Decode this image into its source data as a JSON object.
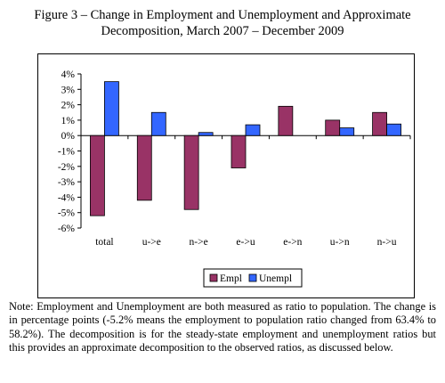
{
  "title_lines": [
    "Figure 3 – Change in Employment and Unemployment and Approximate",
    "Decomposition, March 2007 – December 2009"
  ],
  "note": "Note: Employment and Unemployment are both measured as ratio to population. The change is in percentage points (-5.2% means the employment to population ratio changed from 63.4% to 58.2%). The decomposition is for the steady-state employment and unemployment ratios but this provides an approximate decomposition to the observed ratios, as discussed below.",
  "chart_data": {
    "type": "bar",
    "title": "",
    "xlabel": "",
    "ylabel": "",
    "categories": [
      "total",
      "u->e",
      "n->e",
      "e->u",
      "e->n",
      "u->n",
      "n->u"
    ],
    "series": [
      {
        "name": "Empl",
        "color": "#993366",
        "values": [
          -5.2,
          -4.2,
          -4.8,
          -2.1,
          1.9,
          1.0,
          1.5
        ]
      },
      {
        "name": "Unempl",
        "color": "#3366ff",
        "values": [
          3.5,
          1.5,
          0.2,
          0.7,
          null,
          0.5,
          0.75
        ]
      }
    ],
    "ylim": [
      -6,
      4
    ],
    "yticks": [
      "4%",
      "3%",
      "2%",
      "1%",
      "0%",
      "-1%",
      "-2%",
      "-3%",
      "-4%",
      "-5%",
      "-6%"
    ],
    "grid": false,
    "legend": "bottom-right"
  }
}
